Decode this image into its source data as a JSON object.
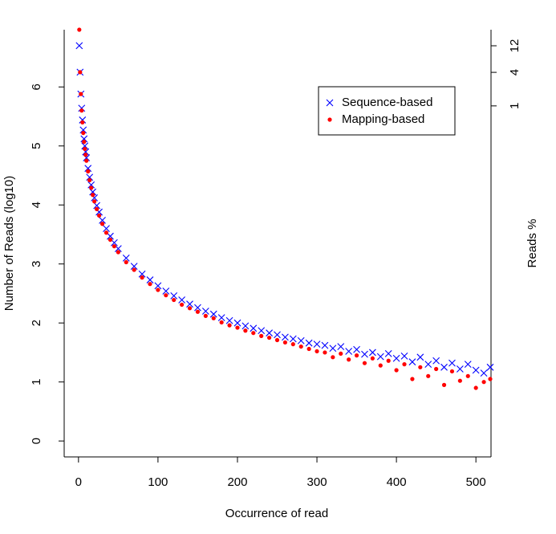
{
  "chart_data": {
    "type": "scatter",
    "xlabel": "Occurrence of read",
    "ylabel": "Number of Reads (log10)",
    "y2label": "Reads %",
    "legend_position": "top-right",
    "xlim": [
      -18,
      519
    ],
    "xticks": [
      0,
      100,
      200,
      300,
      400,
      500
    ],
    "ylim": [
      -0.27,
      6.97
    ],
    "yticks": [
      0,
      1,
      2,
      3,
      4,
      5,
      6
    ],
    "y2lim": [
      5e-07,
      23.3
    ],
    "y2log": true,
    "y2ticks": [
      1,
      4,
      12
    ],
    "x": [
      1,
      2,
      3,
      4,
      5,
      6,
      7,
      8,
      9,
      10,
      12,
      14,
      16,
      18,
      20,
      23,
      26,
      30,
      35,
      40,
      45,
      50,
      60,
      70,
      80,
      90,
      100,
      110,
      120,
      130,
      140,
      150,
      160,
      170,
      180,
      190,
      200,
      210,
      220,
      230,
      240,
      250,
      260,
      270,
      280,
      290,
      300,
      310,
      320,
      330,
      340,
      350,
      360,
      370,
      380,
      390,
      400,
      410,
      420,
      430,
      440,
      450,
      460,
      470,
      480,
      490,
      500,
      510,
      518
    ],
    "series": [
      {
        "name": "Sequence-based",
        "color": "#0000ff",
        "marker": "x",
        "values": [
          6.7,
          6.25,
          5.88,
          5.64,
          5.44,
          5.27,
          5.12,
          5.0,
          4.9,
          4.8,
          4.62,
          4.47,
          4.34,
          4.22,
          4.12,
          3.99,
          3.88,
          3.74,
          3.6,
          3.47,
          3.36,
          3.26,
          3.1,
          2.96,
          2.83,
          2.73,
          2.63,
          2.54,
          2.46,
          2.39,
          2.32,
          2.26,
          2.2,
          2.15,
          2.09,
          2.04,
          2.0,
          1.95,
          1.91,
          1.87,
          1.83,
          1.8,
          1.76,
          1.73,
          1.7,
          1.66,
          1.64,
          1.62,
          1.57,
          1.6,
          1.52,
          1.55,
          1.47,
          1.5,
          1.43,
          1.48,
          1.4,
          1.44,
          1.34,
          1.42,
          1.3,
          1.36,
          1.25,
          1.32,
          1.22,
          1.3,
          1.2,
          1.15,
          1.25
        ]
      },
      {
        "name": "Mapping-based",
        "color": "#ff0000",
        "marker": "dot",
        "values": [
          6.97,
          6.25,
          5.88,
          5.6,
          5.4,
          5.22,
          5.07,
          4.95,
          4.85,
          4.75,
          4.57,
          4.42,
          4.29,
          4.17,
          4.06,
          3.93,
          3.82,
          3.68,
          3.53,
          3.41,
          3.3,
          3.2,
          3.03,
          2.9,
          2.77,
          2.66,
          2.56,
          2.47,
          2.39,
          2.31,
          2.25,
          2.19,
          2.12,
          2.08,
          2.01,
          1.96,
          1.92,
          1.87,
          1.83,
          1.78,
          1.75,
          1.71,
          1.67,
          1.64,
          1.6,
          1.56,
          1.52,
          1.5,
          1.42,
          1.48,
          1.38,
          1.45,
          1.32,
          1.4,
          1.28,
          1.36,
          1.2,
          1.3,
          1.05,
          1.25,
          1.1,
          1.22,
          0.95,
          1.18,
          1.02,
          1.1,
          0.9,
          1.0,
          1.05
        ]
      }
    ]
  }
}
